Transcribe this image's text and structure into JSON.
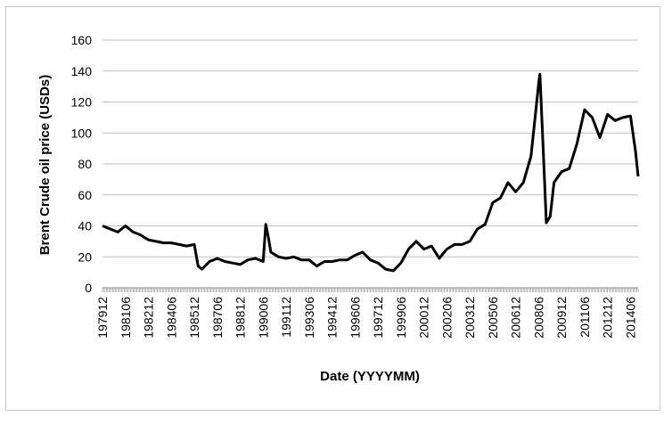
{
  "chart_data": {
    "type": "line",
    "title": "",
    "xlabel": "Date (YYYYMM)",
    "ylabel": "Brent Crude oil price (USDs)",
    "ylim": [
      0,
      160
    ],
    "yticks": [
      "0",
      "20",
      "40",
      "60",
      "80",
      "100",
      "120",
      "140",
      "160"
    ],
    "xticks": [
      "197912",
      "198106",
      "198212",
      "198406",
      "198512",
      "198706",
      "198812",
      "199006",
      "199112",
      "199306",
      "199412",
      "199606",
      "199712",
      "199906",
      "200012",
      "200206",
      "200312",
      "200506",
      "200612",
      "200806",
      "200912",
      "201106",
      "201212",
      "201406"
    ],
    "grid": true,
    "legend": "none",
    "line_color": "#000000",
    "series": [
      {
        "x": [
          "197912",
          "198006",
          "198012",
          "198106",
          "198112",
          "198206",
          "198212",
          "198306",
          "198312",
          "198406",
          "198412",
          "198506",
          "198512",
          "198603",
          "198606",
          "198612",
          "198706",
          "198712",
          "198806",
          "198812",
          "198906",
          "198912",
          "199006",
          "199008",
          "199010",
          "199012",
          "199106",
          "199112",
          "199206",
          "199212",
          "199306",
          "199312",
          "199406",
          "199412",
          "199506",
          "199512",
          "199606",
          "199612",
          "199706",
          "199712",
          "199806",
          "199812",
          "199906",
          "199912",
          "200006",
          "200012",
          "200106",
          "200112",
          "200206",
          "200212",
          "200306",
          "200312",
          "200406",
          "200412",
          "200506",
          "200512",
          "200606",
          "200612",
          "200706",
          "200712",
          "200806",
          "200807",
          "200809",
          "200812",
          "200903",
          "200906",
          "200912",
          "201006",
          "201012",
          "201106",
          "201112",
          "201206",
          "201212",
          "201306",
          "201312",
          "201406",
          "201410",
          "201412"
        ],
        "values": [
          40,
          38,
          36,
          40,
          36,
          34,
          31,
          30,
          29,
          29,
          28,
          27,
          28,
          14,
          12,
          17,
          19,
          17,
          16,
          15,
          18,
          19,
          17,
          41,
          33,
          23,
          20,
          19,
          20,
          18,
          18,
          14,
          17,
          17,
          18,
          18,
          21,
          23,
          18,
          16,
          12,
          11,
          16,
          25,
          30,
          25,
          27,
          19,
          25,
          28,
          28,
          30,
          38,
          41,
          55,
          58,
          68,
          62,
          68,
          85,
          132,
          138,
          100,
          42,
          46,
          68,
          75,
          77,
          93,
          115,
          110,
          97,
          112,
          108,
          110,
          111,
          88,
          72
        ]
      }
    ]
  }
}
